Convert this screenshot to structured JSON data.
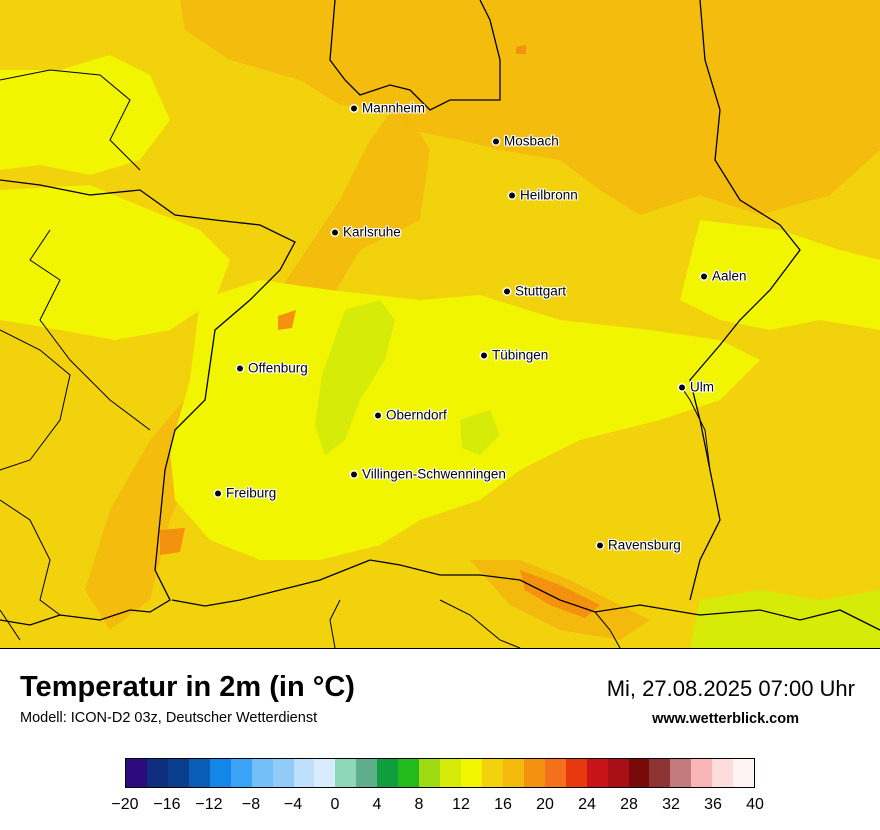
{
  "map": {
    "region": "Baden-Württemberg",
    "cities": [
      {
        "name": "Mannheim"
      },
      {
        "name": "Mosbach"
      },
      {
        "name": "Heilbronn"
      },
      {
        "name": "Karlsruhe"
      },
      {
        "name": "Aalen"
      },
      {
        "name": "Stuttgart"
      },
      {
        "name": "Tübingen"
      },
      {
        "name": "Offenburg"
      },
      {
        "name": "Ulm"
      },
      {
        "name": "Oberndorf"
      },
      {
        "name": "Villingen-Schwenningen"
      },
      {
        "name": "Freiburg"
      },
      {
        "name": "Ravensburg"
      }
    ]
  },
  "header": {
    "title": "Temperatur in 2m (in °C)",
    "model": "Modell: ICON-D2 03z, Deutscher Wetterdienst",
    "datetime": "Mi, 27.08.2025 07:00 Uhr",
    "website": "www.wetterblick.com"
  },
  "legend": {
    "unit": "°C",
    "min": -20,
    "max": 40,
    "step": 2,
    "colors": [
      "#2e0a7f",
      "#0d2f7d",
      "#0a3f8e",
      "#0a5cb7",
      "#1486ea",
      "#3aa3f5",
      "#74bff7",
      "#92cbf8",
      "#bfe0fb",
      "#d9ecfc",
      "#8fd8b7",
      "#5fae8b",
      "#0e9e3e",
      "#22ba1c",
      "#9edb12",
      "#d6eb07",
      "#f2f500",
      "#f2d20c",
      "#f4b90d",
      "#f4910e",
      "#f4701c",
      "#e8390e",
      "#c8131a",
      "#a80f16",
      "#7a0a0a",
      "#8e3434",
      "#c27a7a",
      "#f9b5b5",
      "#ffdddd",
      "#fff4f4"
    ],
    "tick_values": [
      -20,
      -16,
      -12,
      -8,
      -4,
      0,
      4,
      8,
      12,
      16,
      20,
      24,
      28,
      32,
      36,
      40
    ],
    "tick_labels": [
      "−20",
      "−16",
      "−12",
      "−8",
      "−4",
      "0",
      "4",
      "8",
      "12",
      "16",
      "20",
      "24",
      "28",
      "32",
      "36",
      "40"
    ]
  },
  "colors": {
    "base_field": "#f2d20c",
    "warm_field": "#f4b90d",
    "cool_field": "#f2f500",
    "cold_field": "#d6eb07",
    "hot_spot": "#f4910e",
    "border": "#000000"
  }
}
